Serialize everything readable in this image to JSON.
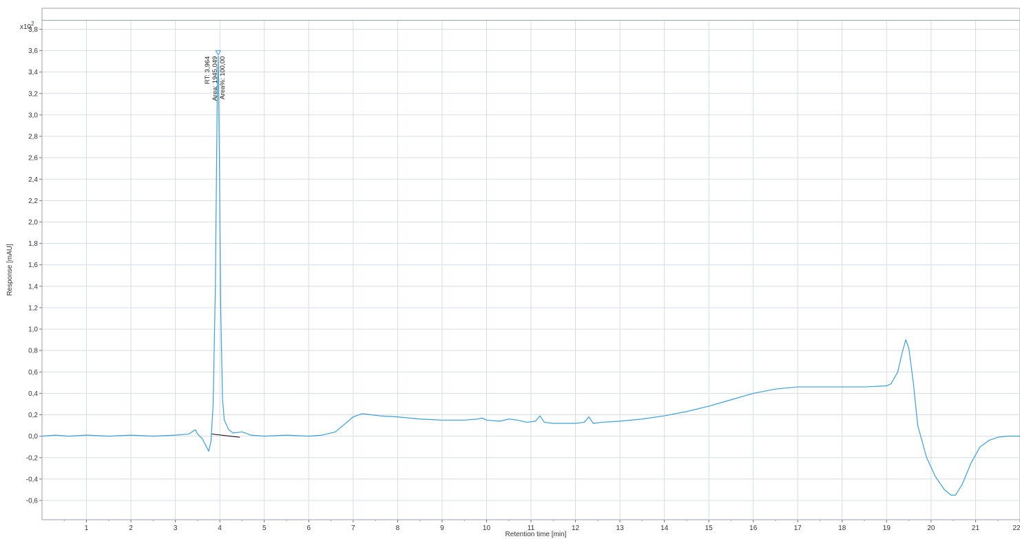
{
  "chart_data": {
    "type": "line",
    "xlabel": "Retention time [min]",
    "ylabel": "Response [mAU]",
    "y_multiplier_label": "x10",
    "y_multiplier_exponent": "2",
    "xlim": [
      0,
      22
    ],
    "ylim": [
      -0.78,
      3.88
    ],
    "x_ticks": [
      1,
      2,
      3,
      4,
      5,
      6,
      7,
      8,
      9,
      10,
      11,
      12,
      13,
      14,
      15,
      16,
      17,
      18,
      19,
      20,
      21,
      22
    ],
    "x_tick_labels": [
      "1",
      "2",
      "3",
      "4",
      "5",
      "6",
      "7",
      "8",
      "9",
      "10",
      "11",
      "12",
      "13",
      "14",
      "15",
      "16",
      "17",
      "18",
      "19",
      "20",
      "21",
      "22"
    ],
    "y_ticks": [
      -0.6,
      -0.4,
      -0.2,
      0.0,
      0.2,
      0.4,
      0.6,
      0.8,
      1.0,
      1.2,
      1.4,
      1.6,
      1.8,
      2.0,
      2.2,
      2.4,
      2.6,
      2.8,
      3.0,
      3.2,
      3.4,
      3.6,
      3.8
    ],
    "y_tick_labels": [
      "-0,6",
      "-0,4",
      "-0,2",
      "0,0",
      "0,2",
      "0,4",
      "0,6",
      "0,8",
      "1,0",
      "1,2",
      "1,4",
      "1,6",
      "1,8",
      "2,0",
      "2,2",
      "2,4",
      "2,6",
      "2,8",
      "3,0",
      "3,2",
      "3,4",
      "3,6",
      "3,8"
    ],
    "grid": true,
    "series": [
      {
        "color": "#3a9fd8",
        "x": [
          0,
          0.3,
          0.6,
          1,
          1.5,
          2,
          2.5,
          3,
          3.3,
          3.45,
          3.5,
          3.6,
          3.7,
          3.75,
          3.8,
          3.85,
          3.9,
          3.94,
          3.964,
          3.99,
          4.02,
          4.06,
          4.1,
          4.2,
          4.3,
          4.5,
          4.7,
          5,
          5.5,
          6,
          6.3,
          6.6,
          6.8,
          7,
          7.2,
          7.4,
          7.6,
          8,
          8.5,
          9,
          9.5,
          9.8,
          9.9,
          10,
          10.3,
          10.5,
          10.7,
          10.9,
          11.1,
          11.2,
          11.3,
          11.5,
          12,
          12.2,
          12.3,
          12.4,
          12.6,
          13,
          13.5,
          14,
          14.5,
          15,
          15.5,
          16,
          16.5,
          17,
          17.5,
          18,
          18.5,
          19,
          19.1,
          19.25,
          19.35,
          19.43,
          19.5,
          19.6,
          19.7,
          19.9,
          20.1,
          20.3,
          20.45,
          20.55,
          20.7,
          20.9,
          21.1,
          21.3,
          21.5,
          21.7,
          22
        ],
        "y": [
          0,
          0.01,
          0,
          0.01,
          0,
          0.01,
          0,
          0.01,
          0.02,
          0.06,
          0.02,
          -0.02,
          -0.1,
          -0.14,
          -0.05,
          0.3,
          1.4,
          3.1,
          3.55,
          2.6,
          1.2,
          0.35,
          0.15,
          0.06,
          0.03,
          0.04,
          0.01,
          0,
          0.01,
          0,
          0.01,
          0.04,
          0.11,
          0.18,
          0.21,
          0.2,
          0.19,
          0.18,
          0.16,
          0.15,
          0.15,
          0.16,
          0.17,
          0.15,
          0.14,
          0.16,
          0.15,
          0.13,
          0.14,
          0.19,
          0.13,
          0.12,
          0.12,
          0.13,
          0.18,
          0.12,
          0.13,
          0.14,
          0.16,
          0.19,
          0.23,
          0.28,
          0.34,
          0.4,
          0.44,
          0.46,
          0.46,
          0.46,
          0.46,
          0.47,
          0.49,
          0.6,
          0.78,
          0.9,
          0.82,
          0.5,
          0.1,
          -0.2,
          -0.38,
          -0.5,
          -0.55,
          -0.55,
          -0.45,
          -0.25,
          -0.1,
          -0.04,
          -0.01,
          0,
          0
        ]
      }
    ],
    "baseline_segment": {
      "color": "#000000",
      "x": [
        3.82,
        4.45
      ],
      "y": [
        0.02,
        -0.01
      ]
    },
    "peak_marker": {
      "x": 3.964,
      "y": 3.58,
      "color": "#3a9fd8"
    },
    "peak_annotation": [
      "RT: 3,964",
      "Area: 1945,049",
      "Area%: 100,00"
    ]
  }
}
